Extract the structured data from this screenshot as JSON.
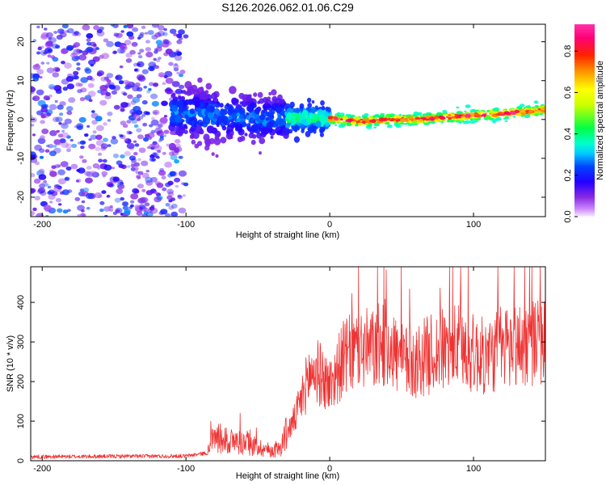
{
  "figure_title": "S126.2026.062.01.06.C29",
  "chart_data": [
    {
      "type": "heatmap",
      "title": "S126.2026.062.01.06.C29",
      "xlabel": "Height of straight line (km)",
      "ylabel": "Frequency (Hz)",
      "xlim": [
        -208,
        150
      ],
      "ylim": [
        -25,
        24.5
      ],
      "xticks": [
        -200,
        -100,
        0,
        100
      ],
      "xtick_labels": [
        "-200",
        "-100",
        "0",
        "100"
      ],
      "yticks": [
        -20,
        -10,
        0,
        10,
        20
      ],
      "ytick_labels": [
        "-20",
        "-10",
        "0",
        "10",
        "20"
      ],
      "colorbar": {
        "label": "Normalized spectral amplitude",
        "range": [
          0,
          0.93
        ],
        "ticks": [
          0.0,
          0.2,
          0.4,
          0.6,
          0.8
        ],
        "tick_labels": [
          "0.0",
          "0.2",
          "0.4",
          "0.6",
          "0.8"
        ],
        "colormap": "rainbow"
      },
      "centerline": [
        {
          "x": -110,
          "f": 1.5
        },
        {
          "x": -80,
          "f": 1.0
        },
        {
          "x": -60,
          "f": 0.5
        },
        {
          "x": -40,
          "f": 0.0
        },
        {
          "x": -20,
          "f": 0.5
        },
        {
          "x": 0,
          "f": 0.2
        },
        {
          "x": 20,
          "f": -0.5
        },
        {
          "x": 40,
          "f": 0.0
        },
        {
          "x": 60,
          "f": 0.0
        },
        {
          "x": 80,
          "f": 0.5
        },
        {
          "x": 100,
          "f": 1.0
        },
        {
          "x": 120,
          "f": 1.5
        },
        {
          "x": 150,
          "f": 2.5
        }
      ],
      "regions": [
        {
          "name": "noise",
          "x": [
            -208,
            -100
          ],
          "spread_hz": 24,
          "amplitude": [
            0.05,
            0.3
          ]
        },
        {
          "name": "transition",
          "x": [
            -110,
            -30
          ],
          "spread_hz": 6,
          "amplitude": [
            0.1,
            0.3
          ]
        },
        {
          "name": "emerging",
          "x": [
            -30,
            0
          ],
          "spread_hz": 3,
          "amplitude": [
            0.2,
            0.45
          ]
        },
        {
          "name": "signal",
          "x": [
            0,
            150
          ],
          "spread_hz": 1.2,
          "amplitude": [
            0.35,
            0.93
          ]
        }
      ]
    },
    {
      "type": "line",
      "xlabel": "Height of straight line (km)",
      "ylabel": "SNR (10 * v/v)",
      "xlim": [
        -208,
        150
      ],
      "ylim": [
        0,
        490
      ],
      "xticks": [
        -200,
        -100,
        0,
        100
      ],
      "xtick_labels": [
        "-200",
        "-100",
        "0",
        "100"
      ],
      "yticks": [
        0,
        100,
        200,
        300,
        400
      ],
      "ytick_labels": [
        "0",
        "100",
        "200",
        "300",
        "400"
      ],
      "color": "#ee3333",
      "series": [
        {
          "name": "SNR",
          "x": [
            -208,
            -100,
            -85,
            -80,
            -70,
            -60,
            -50,
            -40,
            -35,
            -30,
            -25,
            -20,
            -15,
            -10,
            -5,
            0,
            10,
            20,
            30,
            40,
            50,
            60,
            70,
            80,
            90,
            100,
            110,
            120,
            130,
            140,
            150
          ],
          "y": [
            10,
            12,
            20,
            60,
            50,
            45,
            35,
            25,
            30,
            70,
            100,
            150,
            210,
            230,
            210,
            190,
            260,
            280,
            280,
            300,
            250,
            250,
            270,
            280,
            290,
            270,
            260,
            290,
            290,
            300,
            300
          ]
        }
      ]
    }
  ]
}
